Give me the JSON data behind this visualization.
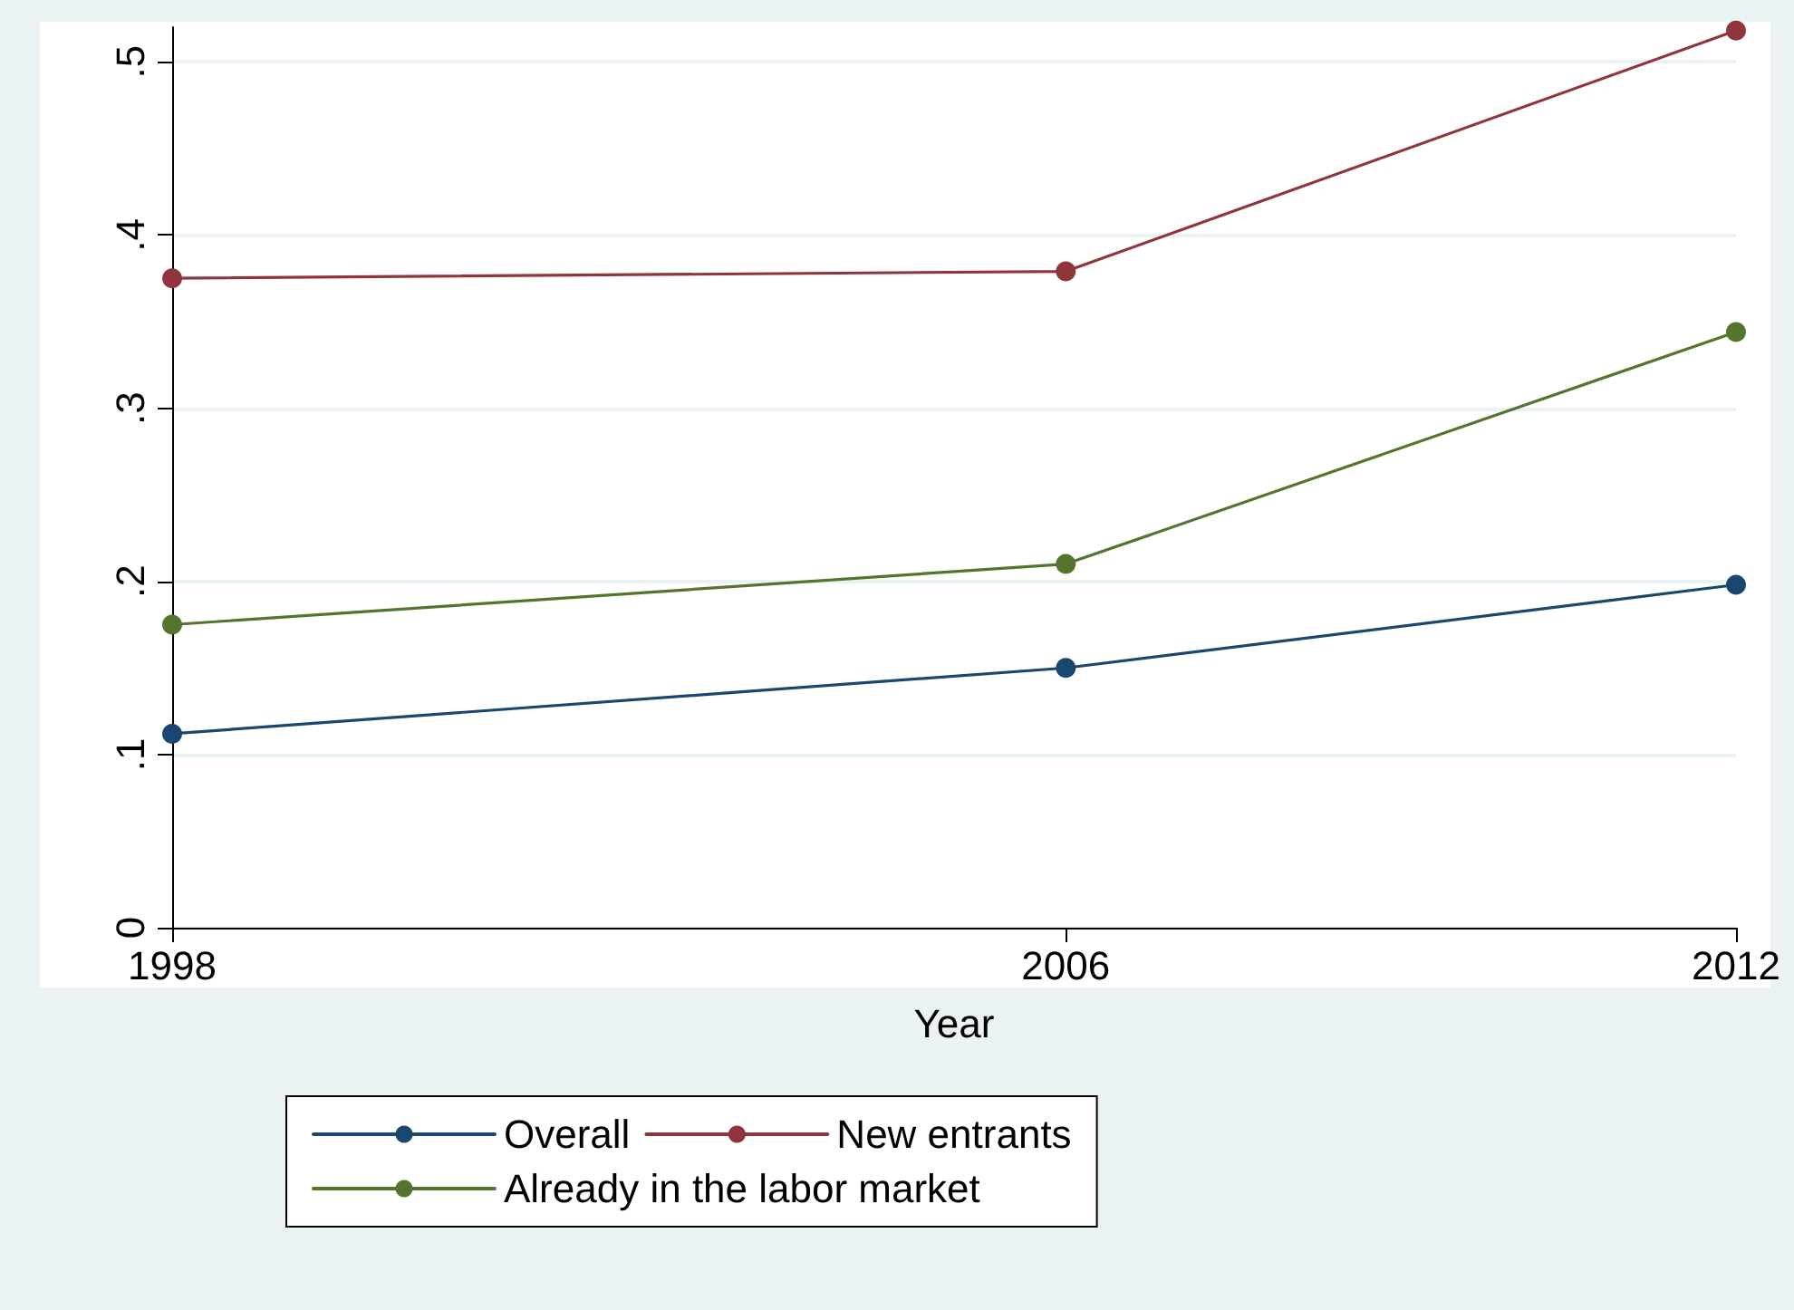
{
  "chart_data": {
    "type": "line",
    "xlabel": "Year",
    "x": [
      1998,
      2006,
      2012
    ],
    "xlim": [
      1998,
      2012
    ],
    "xticks": [
      1998,
      2006,
      2012
    ],
    "ylim": [
      0,
      0.52
    ],
    "yticks": [
      {
        "value": 0,
        "label": "0"
      },
      {
        "value": 0.1,
        "label": ".1"
      },
      {
        "value": 0.2,
        "label": ".2"
      },
      {
        "value": 0.3,
        "label": ".3"
      },
      {
        "value": 0.4,
        "label": ".4"
      },
      {
        "value": 0.5,
        "label": ".5"
      }
    ],
    "series": [
      {
        "name": "Overall",
        "color": "#1a476f",
        "values": [
          0.112,
          0.15,
          0.198
        ]
      },
      {
        "name": "New entrants",
        "color": "#90353b",
        "values": [
          0.375,
          0.379,
          0.518
        ]
      },
      {
        "name": "Already in the labor market",
        "color": "#55752f",
        "values": [
          0.175,
          0.21,
          0.344
        ]
      }
    ],
    "grid": "y",
    "legend": "bottom",
    "marker": "circle",
    "line_style": "solid"
  }
}
